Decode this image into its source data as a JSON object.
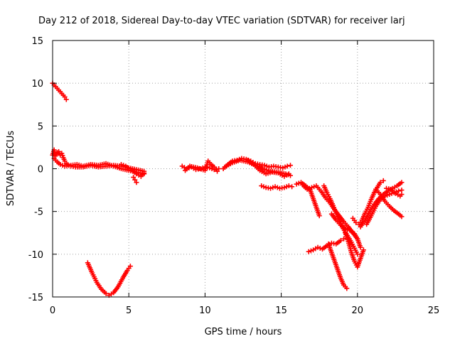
{
  "chart_data": {
    "type": "scatter",
    "title": "Day 212 of 2018, Sidereal Day-to-day VTEC variation (SDTVAR) for receiver larj",
    "xlabel": "GPS time / hours",
    "ylabel": "SDTVAR / TECUs",
    "xlim": [
      0,
      25
    ],
    "ylim": [
      -15,
      15
    ],
    "xticks": [
      "0",
      "5",
      "10",
      "15",
      "20",
      "25"
    ],
    "yticks": [
      "15",
      "10",
      "5",
      "0",
      "-5",
      "-10",
      "-15"
    ],
    "xtick_values": [
      0,
      5,
      10,
      15,
      20,
      25
    ],
    "ytick_values": [
      15,
      10,
      5,
      0,
      -5,
      -10,
      -15
    ],
    "grid": true,
    "marker": "+",
    "color": "#ff0000",
    "series": [
      {
        "x": [
          0.0,
          0.2,
          0.4,
          0.6,
          0.8,
          0.9
        ],
        "y": [
          10.0,
          9.6,
          9.2,
          8.8,
          8.4,
          8.1
        ]
      },
      {
        "x": [
          0.0,
          0.1,
          0.2,
          0.3,
          0.4,
          0.5,
          0.6,
          0.7,
          0.8,
          0.9,
          1.0,
          1.2,
          1.5,
          2.0,
          2.5,
          3.0,
          3.5,
          4.0,
          4.5,
          5.0,
          5.5,
          6.0
        ],
        "y": [
          1.6,
          2.2,
          1.5,
          1.9,
          2.0,
          1.6,
          1.8,
          1.3,
          0.9,
          0.6,
          0.5,
          0.3,
          0.2,
          0.2,
          0.4,
          0.2,
          0.3,
          0.4,
          0.3,
          0.1,
          -0.1,
          -0.3
        ]
      },
      {
        "x": [
          0.1,
          0.3,
          0.5,
          0.8,
          1.2,
          1.6,
          2.0,
          2.5,
          3.0,
          3.5,
          4.0,
          4.5,
          5.0,
          5.5,
          6.0
        ],
        "y": [
          1.2,
          0.8,
          0.5,
          0.3,
          0.4,
          0.5,
          0.3,
          0.5,
          0.4,
          0.6,
          0.3,
          0.0,
          -0.2,
          -0.4,
          -0.6
        ]
      },
      {
        "x": [
          4.5,
          4.8,
          5.0,
          5.3,
          5.5,
          5.8,
          6.0
        ],
        "y": [
          0.5,
          0.3,
          0.0,
          -0.3,
          -0.6,
          -0.9,
          -0.5
        ]
      },
      {
        "x": [
          5.3,
          5.4,
          5.5
        ],
        "y": [
          -1.0,
          -1.3,
          -1.6
        ]
      },
      {
        "x": [
          2.3,
          2.6,
          2.9,
          3.2,
          3.5,
          3.7,
          4.0,
          4.3,
          4.6,
          4.9,
          5.1
        ],
        "y": [
          -11.0,
          -12.2,
          -13.3,
          -14.1,
          -14.6,
          -14.8,
          -14.5,
          -13.8,
          -12.8,
          -11.9,
          -11.4
        ]
      },
      {
        "x": [
          8.5,
          8.8,
          9.1,
          9.4,
          9.7,
          10.0,
          10.3,
          10.6,
          10.9
        ],
        "y": [
          0.3,
          0.0,
          0.2,
          -0.1,
          0.0,
          0.2,
          0.1,
          -0.1,
          0.0
        ]
      },
      {
        "x": [
          8.7,
          9.0,
          9.5,
          10.0,
          10.2,
          10.4,
          10.6,
          10.8
        ],
        "y": [
          -0.2,
          0.3,
          0.1,
          -0.2,
          0.9,
          0.5,
          0.2,
          -0.3
        ]
      },
      {
        "x": [
          11.2,
          11.5,
          11.8,
          12.1,
          12.4,
          12.7,
          13.0,
          13.3,
          13.6,
          13.9,
          14.2,
          14.5,
          14.8,
          15.1,
          15.4,
          15.6
        ],
        "y": [
          0.0,
          0.5,
          0.9,
          1.0,
          1.2,
          1.1,
          0.9,
          0.6,
          0.5,
          0.4,
          0.2,
          0.3,
          0.2,
          0.1,
          0.3,
          0.4
        ]
      },
      {
        "x": [
          11.3,
          11.8,
          12.3,
          12.8,
          13.3,
          13.8,
          14.3,
          14.8,
          15.3,
          15.6
        ],
        "y": [
          0.2,
          0.7,
          1.0,
          0.8,
          0.4,
          0.0,
          -0.3,
          -0.4,
          -0.6,
          -0.8
        ]
      },
      {
        "x": [
          12.8,
          13.2,
          13.6,
          14.0,
          14.4,
          14.8,
          15.2,
          15.5
        ],
        "y": [
          1.0,
          0.5,
          -0.2,
          -0.6,
          -0.4,
          -0.5,
          -0.9,
          -0.6
        ]
      },
      {
        "x": [
          13.7,
          14.0,
          14.3,
          14.6,
          14.9,
          15.2,
          15.5,
          15.7
        ],
        "y": [
          -2.0,
          -2.2,
          -2.3,
          -2.1,
          -2.3,
          -2.2,
          -2.0,
          -2.1
        ]
      },
      {
        "x": [
          16.0,
          16.3,
          16.6,
          16.9,
          17.1,
          17.3,
          17.5
        ],
        "y": [
          -1.8,
          -1.6,
          -2.0,
          -2.5,
          -3.5,
          -4.5,
          -5.5
        ]
      },
      {
        "x": [
          16.4,
          16.7,
          17.0,
          17.3,
          17.6,
          17.9,
          18.2,
          18.5,
          18.8,
          19.1,
          19.4,
          19.7,
          20.0
        ],
        "y": [
          -1.9,
          -2.4,
          -2.2,
          -2.0,
          -2.6,
          -3.4,
          -4.0,
          -4.8,
          -5.5,
          -6.2,
          -6.8,
          -7.5,
          -8.2
        ]
      },
      {
        "x": [
          17.8,
          18.0,
          18.2,
          18.4,
          18.6,
          18.8,
          19.0,
          19.2,
          19.4,
          19.6,
          19.8,
          20.0
        ],
        "y": [
          -2.0,
          -2.8,
          -3.5,
          -4.3,
          -5.2,
          -6.0,
          -6.8,
          -7.4,
          -8.0,
          -8.6,
          -9.3,
          -10.0
        ]
      },
      {
        "x": [
          16.8,
          17.1,
          17.4,
          17.7,
          18.0,
          18.3,
          18.6,
          18.9,
          19.1
        ],
        "y": [
          -9.7,
          -9.5,
          -9.2,
          -9.4,
          -9.0,
          -8.7,
          -8.8,
          -8.4,
          -8.2
        ]
      },
      {
        "x": [
          18.1,
          18.3,
          18.5,
          18.7,
          18.9,
          19.1,
          19.3
        ],
        "y": [
          -8.8,
          -9.8,
          -10.8,
          -11.8,
          -12.8,
          -13.6,
          -14.0
        ]
      },
      {
        "x": [
          18.3,
          18.6,
          18.9,
          19.2,
          19.5,
          19.8,
          20.0,
          20.2
        ],
        "y": [
          -5.3,
          -6.0,
          -6.6,
          -7.0,
          -7.2,
          -7.6,
          -8.2,
          -9.2
        ]
      },
      {
        "x": [
          19.2,
          19.4,
          19.6,
          19.8,
          20.0,
          20.2,
          20.4
        ],
        "y": [
          -7.5,
          -8.5,
          -9.8,
          -10.8,
          -11.5,
          -10.5,
          -9.5
        ]
      },
      {
        "x": [
          19.7,
          19.9,
          20.1,
          20.3,
          20.5,
          20.7,
          20.9,
          21.1,
          21.3,
          21.5,
          21.7
        ],
        "y": [
          -5.8,
          -6.3,
          -6.5,
          -6.0,
          -5.2,
          -4.5,
          -3.6,
          -2.8,
          -2.2,
          -1.6,
          -1.4
        ]
      },
      {
        "x": [
          20.2,
          20.5,
          20.8,
          21.1,
          21.4,
          21.7,
          22.0,
          22.3,
          22.6,
          22.9
        ],
        "y": [
          -6.8,
          -6.0,
          -5.0,
          -4.2,
          -3.5,
          -3.0,
          -2.6,
          -2.3,
          -2.0,
          -1.6
        ]
      },
      {
        "x": [
          20.6,
          20.9,
          21.2,
          21.5,
          21.8,
          22.1,
          22.4,
          22.7,
          22.9
        ],
        "y": [
          -6.5,
          -5.5,
          -4.4,
          -3.6,
          -3.2,
          -3.0,
          -2.8,
          -2.6,
          -2.5
        ]
      },
      {
        "x": [
          21.2,
          21.5,
          21.8,
          22.1,
          22.4,
          22.7,
          22.9
        ],
        "y": [
          -2.4,
          -3.0,
          -3.8,
          -4.4,
          -4.9,
          -5.3,
          -5.6
        ]
      },
      {
        "x": [
          21.9,
          22.2,
          22.5,
          22.8,
          22.9
        ],
        "y": [
          -2.3,
          -2.4,
          -2.9,
          -3.2,
          -3.0
        ]
      }
    ]
  }
}
